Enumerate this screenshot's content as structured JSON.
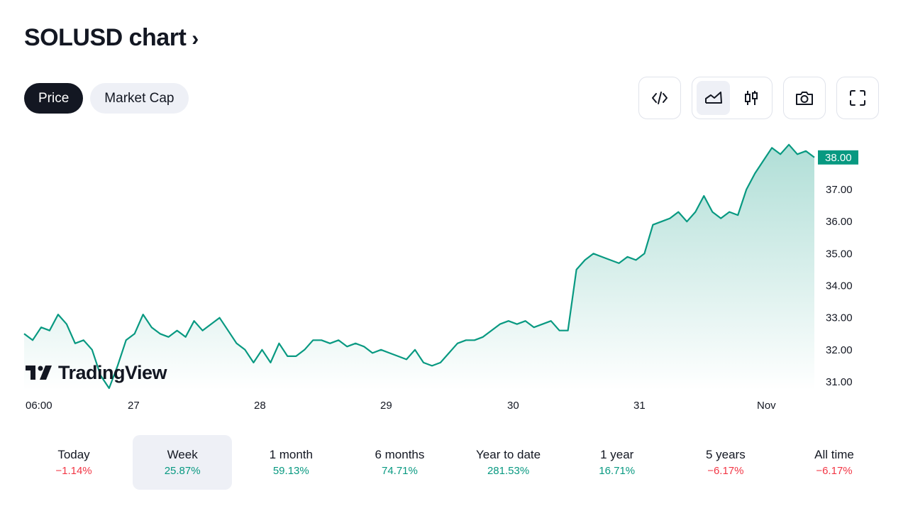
{
  "header": {
    "title": "SOLUSD chart",
    "chevron": "›"
  },
  "tabs": [
    {
      "label": "Price",
      "active": true
    },
    {
      "label": "Market Cap",
      "active": false
    }
  ],
  "toolbar": {
    "embed_icon": "code-icon",
    "area_icon": "area-chart-icon",
    "candle_icon": "candlestick-icon",
    "snapshot_icon": "camera-icon",
    "fullscreen_icon": "fullscreen-icon"
  },
  "watermark": {
    "text": "TradingView"
  },
  "colors": {
    "line": "#089981",
    "label_bg": "#089981",
    "neg": "#f23645",
    "pos": "#089981"
  },
  "chart_data": {
    "type": "area",
    "x_tick_labels": [
      "06:00",
      "27",
      "28",
      "29",
      "30",
      "31",
      "Nov"
    ],
    "y_tick_labels": [
      "31.00",
      "32.00",
      "33.00",
      "34.00",
      "35.00",
      "36.00",
      "37.00"
    ],
    "ylim": [
      30.7,
      38.7
    ],
    "last_price_label": "38.00",
    "last_price": 38.0,
    "series": [
      {
        "values": [
          32.5,
          32.3,
          32.7,
          32.6,
          33.1,
          32.8,
          32.2,
          32.3,
          32.0,
          31.2,
          30.8,
          31.5,
          32.3,
          32.5,
          33.1,
          32.7,
          32.5,
          32.4,
          32.6,
          32.4,
          32.9,
          32.6,
          32.8,
          33.0,
          32.6,
          32.2,
          32.0,
          31.6,
          32.0,
          31.6,
          32.2,
          31.8,
          31.8,
          32.0,
          32.3,
          32.3,
          32.2,
          32.3,
          32.1,
          32.2,
          32.1,
          31.9,
          32.0,
          31.9,
          31.8,
          31.7,
          32.0,
          31.6,
          31.5,
          31.6,
          31.9,
          32.2,
          32.3,
          32.3,
          32.4,
          32.6,
          32.8,
          32.9,
          32.8,
          32.9,
          32.7,
          32.8,
          32.9,
          32.6,
          32.6,
          34.5,
          34.8,
          35.0,
          34.9,
          34.8,
          34.7,
          34.9,
          34.8,
          35.0,
          35.9,
          36.0,
          36.1,
          36.3,
          36.0,
          36.3,
          36.8,
          36.3,
          36.1,
          36.3,
          36.2,
          37.0,
          37.5,
          37.9,
          38.3,
          38.1,
          38.4,
          38.1,
          38.2,
          38.0
        ],
        "x_range": [
          0,
          93
        ]
      }
    ]
  },
  "ranges": [
    {
      "label": "Today",
      "value": "−1.14%",
      "sign": "neg",
      "active": false
    },
    {
      "label": "Week",
      "value": "25.87%",
      "sign": "pos",
      "active": true
    },
    {
      "label": "1 month",
      "value": "59.13%",
      "sign": "pos",
      "active": false
    },
    {
      "label": "6 months",
      "value": "74.71%",
      "sign": "pos",
      "active": false
    },
    {
      "label": "Year to date",
      "value": "281.53%",
      "sign": "pos",
      "active": false
    },
    {
      "label": "1 year",
      "value": "16.71%",
      "sign": "pos",
      "active": false
    },
    {
      "label": "5 years",
      "value": "−6.17%",
      "sign": "neg",
      "active": false
    },
    {
      "label": "All time",
      "value": "−6.17%",
      "sign": "neg",
      "active": false
    }
  ]
}
